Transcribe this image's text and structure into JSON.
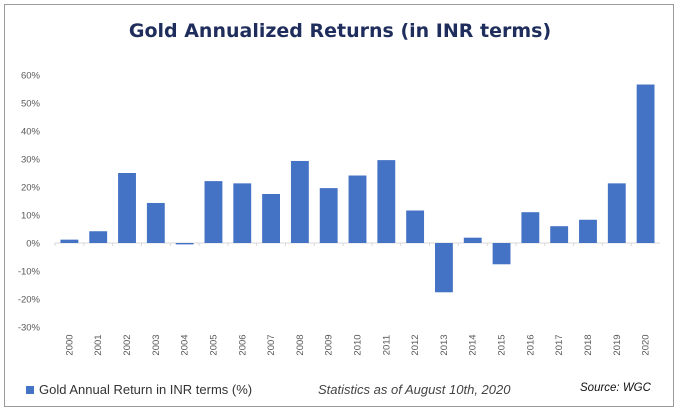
{
  "colors": {
    "bar": "#4472c4",
    "axis_text": "#595959",
    "grid": "#d9d9d9"
  },
  "footer": {
    "legend_label": "Gold Annual Return in INR terms (%)",
    "note": "Statistics as of August 10th, 2020",
    "source": "Source: WGC"
  },
  "chart_data": {
    "type": "bar",
    "title": "Gold Annualized Returns (in INR terms)",
    "xlabel": "",
    "ylabel": "",
    "ylim": [
      -30,
      60
    ],
    "yticks": [
      "60%",
      "50%",
      "40%",
      "30%",
      "20%",
      "10%",
      "0%",
      "-10%",
      "-20%",
      "-30%"
    ],
    "ytick_values": [
      60,
      50,
      40,
      30,
      20,
      10,
      0,
      -10,
      -20,
      -30
    ],
    "categories": [
      "2000",
      "2001",
      "2002",
      "2003",
      "2004",
      "2005",
      "2006",
      "2007",
      "2008",
      "2009",
      "2010",
      "2011",
      "2012",
      "2013",
      "2014",
      "2015",
      "2016",
      "2017",
      "2018",
      "2019",
      "2020"
    ],
    "series": [
      {
        "name": "Gold Annual Return in INR terms (%)",
        "values": [
          1.2,
          4.2,
          25.0,
          14.3,
          -0.5,
          22.1,
          21.3,
          17.5,
          29.3,
          19.6,
          24.1,
          29.6,
          11.6,
          -17.6,
          1.9,
          -7.6,
          11.0,
          6.0,
          8.3,
          21.3,
          56.6
        ]
      }
    ],
    "grid": false,
    "legend_position": "bottom-left"
  }
}
